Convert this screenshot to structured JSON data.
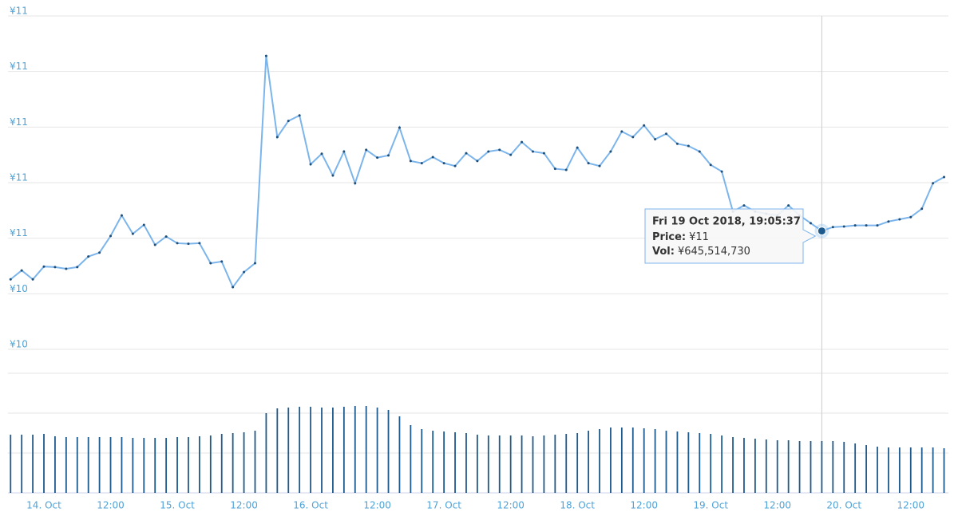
{
  "chart_data": {
    "type": "line",
    "categories": [
      null,
      null,
      null,
      "14. Oct",
      null,
      null,
      null,
      null,
      null,
      "12:00",
      null,
      null,
      null,
      null,
      null,
      "15. Oct",
      null,
      null,
      null,
      null,
      null,
      "12:00",
      null,
      null,
      null,
      null,
      null,
      "16. Oct",
      null,
      null,
      null,
      null,
      null,
      "12:00",
      null,
      null,
      null,
      null,
      null,
      "17. Oct",
      null,
      null,
      null,
      null,
      null,
      "12:00",
      null,
      null,
      null,
      null,
      null,
      "18. Oct",
      null,
      null,
      null,
      null,
      null,
      "12:00",
      null,
      null,
      null,
      null,
      null,
      "19. Oct",
      null,
      null,
      null,
      null,
      null,
      "12:00",
      null,
      null,
      null,
      null,
      null,
      "20. Oct",
      null,
      null,
      null,
      null,
      null,
      "12:00",
      null,
      null,
      null
    ],
    "series": [
      {
        "color": "#7cb5ec",
        "values": [
          10.476,
          10.492,
          10.476,
          10.499,
          10.498,
          10.495,
          10.498,
          10.517,
          10.524,
          10.554,
          10.591,
          10.558,
          10.574,
          10.538,
          10.553,
          10.541,
          10.54,
          10.541,
          10.505,
          10.508,
          10.462,
          10.489,
          10.505,
          10.878,
          10.732,
          10.761,
          10.771,
          10.683,
          10.702,
          10.663,
          10.706,
          10.649,
          10.709,
          10.695,
          10.699,
          10.749,
          10.689,
          10.685,
          10.696,
          10.685,
          10.68,
          10.703,
          10.689,
          10.706,
          10.709,
          10.7,
          10.723,
          10.706,
          10.703,
          10.675,
          10.673,
          10.713,
          10.685,
          10.68,
          10.706,
          10.742,
          10.732,
          10.753,
          10.728,
          10.738,
          10.72,
          10.716,
          10.706,
          10.682,
          10.67,
          10.598,
          10.609,
          10.598,
          10.594,
          10.591,
          10.609,
          10.591,
          10.577,
          10.563,
          10.57,
          10.571,
          10.573,
          10.573,
          10.573,
          10.58,
          10.584,
          10.588,
          10.603,
          10.649,
          10.66
        ]
      },
      {
        "color": "#1f5a8c",
        "type": "bar",
        "axis": "y2",
        "values": [
          730000000,
          730000000,
          730000000,
          740000000,
          710000000,
          700000000,
          700000000,
          700000000,
          700000000,
          700000000,
          700000000,
          690000000,
          690000000,
          690000000,
          690000000,
          700000000,
          700000000,
          710000000,
          720000000,
          740000000,
          750000000,
          760000000,
          780000000,
          1000000000,
          1060000000,
          1070000000,
          1080000000,
          1080000000,
          1070000000,
          1070000000,
          1080000000,
          1090000000,
          1090000000,
          1070000000,
          1040000000,
          960000000,
          850000000,
          800000000,
          780000000,
          770000000,
          760000000,
          750000000,
          730000000,
          720000000,
          720000000,
          720000000,
          720000000,
          710000000,
          720000000,
          730000000,
          740000000,
          750000000,
          780000000,
          800000000,
          820000000,
          820000000,
          820000000,
          810000000,
          800000000,
          780000000,
          770000000,
          760000000,
          750000000,
          740000000,
          720000000,
          700000000,
          690000000,
          680000000,
          670000000,
          660000000,
          660000000,
          650000000,
          650000000,
          650000000,
          650000000,
          640000000,
          620000000,
          600000000,
          580000000,
          570000000,
          570000000,
          570000000,
          570000000,
          570000000,
          560000000
        ]
      }
    ],
    "ylim": [
      10.35,
      10.95
    ],
    "yticks": [
      {
        "value": 10.95,
        "label": "¥11"
      },
      {
        "value": 10.85,
        "label": "¥11"
      },
      {
        "value": 10.75,
        "label": "¥11"
      },
      {
        "value": 10.65,
        "label": "¥11"
      },
      {
        "value": 10.55,
        "label": "¥11"
      },
      {
        "value": 10.45,
        "label": "¥10"
      },
      {
        "value": 10.35,
        "label": "¥10"
      }
    ],
    "y2lim": [
      0,
      1500000000
    ],
    "y2ticks": [
      0,
      500000000,
      1000000000,
      1500000000
    ],
    "grid": true,
    "tooltip": {
      "index": 73,
      "time": "Fri 19 Oct 2018, 19:05:37",
      "price_label": "Price:",
      "price": "¥11",
      "vol_label": "Vol:",
      "vol": "¥645,514,730"
    }
  }
}
